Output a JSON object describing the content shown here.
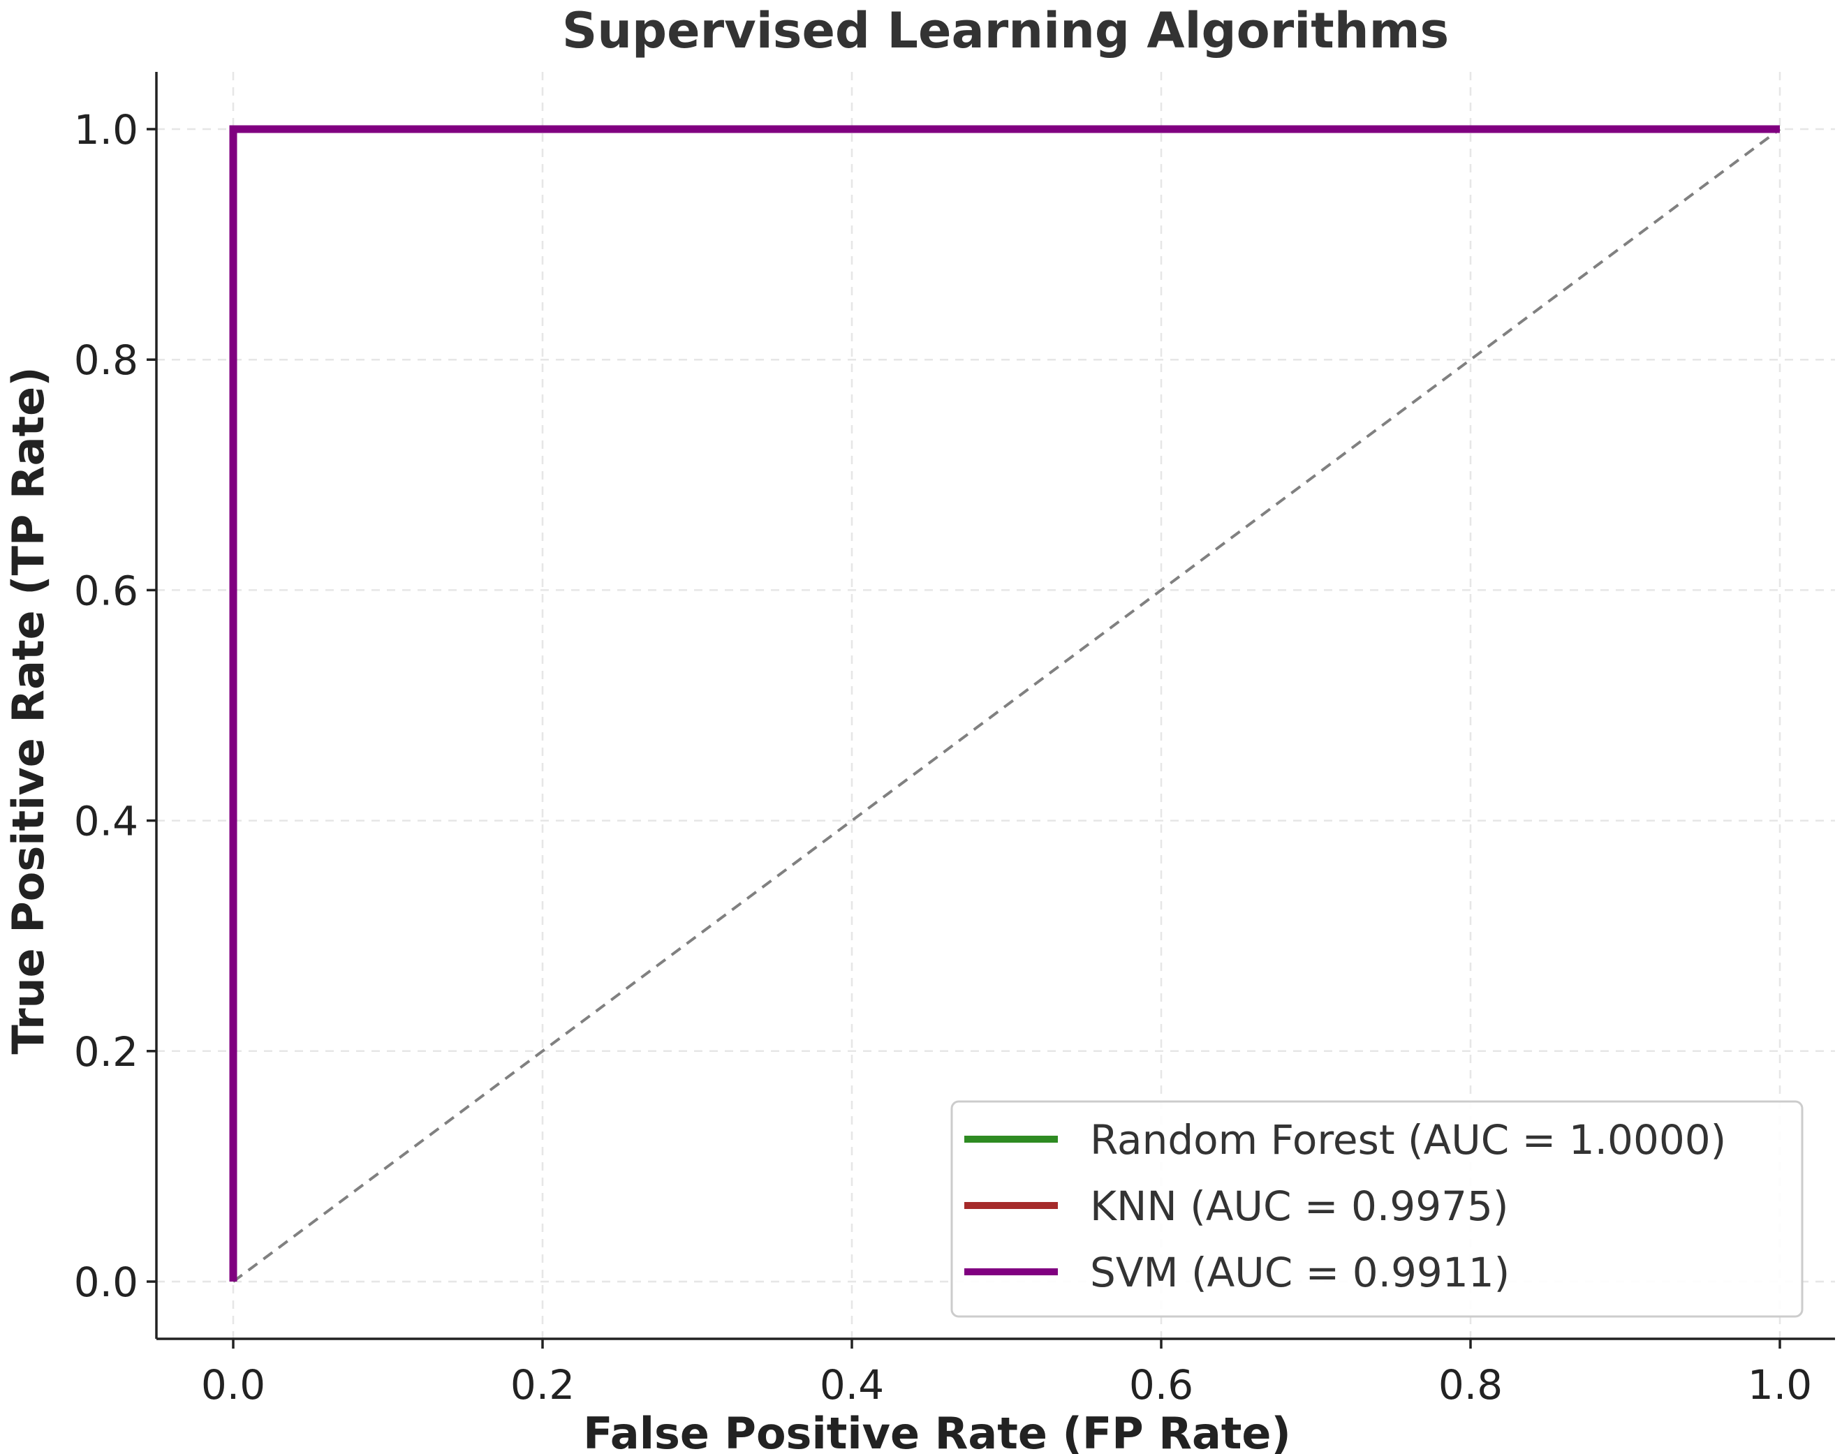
{
  "chart_data": {
    "type": "line",
    "title": "Supervised Learning Algorithms",
    "xlabel": "False Positive Rate (FP Rate)",
    "ylabel": "True Positive Rate (TP Rate)",
    "xlim": [
      -0.05,
      1.05
    ],
    "ylim": [
      -0.05,
      1.05
    ],
    "xticks": [
      0.0,
      0.2,
      0.4,
      0.6,
      0.8,
      1.0
    ],
    "yticks": [
      0.0,
      0.2,
      0.4,
      0.6,
      0.8,
      1.0
    ],
    "xtick_labels": [
      "0.0",
      "0.2",
      "0.4",
      "0.6",
      "0.8",
      "1.0"
    ],
    "ytick_labels": [
      "0.0",
      "0.2",
      "0.4",
      "0.6",
      "0.8",
      "1.0"
    ],
    "grid": true,
    "legend_position": "lower-right",
    "series": [
      {
        "name": "Random Forest (AUC = 1.0000)",
        "color": "#2e8b22",
        "x": [
          0.0,
          0.0,
          1.0
        ],
        "y": [
          0.0,
          1.0,
          1.0
        ]
      },
      {
        "name": "KNN (AUC = 0.9975)",
        "color": "#a52a2a",
        "x": [
          0.0,
          0.0,
          1.0
        ],
        "y": [
          0.0,
          1.0,
          1.0
        ]
      },
      {
        "name": "SVM (AUC = 0.9911)",
        "color": "#800080",
        "x": [
          0.0,
          0.0,
          1.0
        ],
        "y": [
          0.0,
          1.0,
          1.0
        ]
      }
    ],
    "reference_line": {
      "color": "#808080",
      "style": "dashed",
      "x": [
        0.0,
        1.0
      ],
      "y": [
        0.0,
        1.0
      ]
    }
  }
}
